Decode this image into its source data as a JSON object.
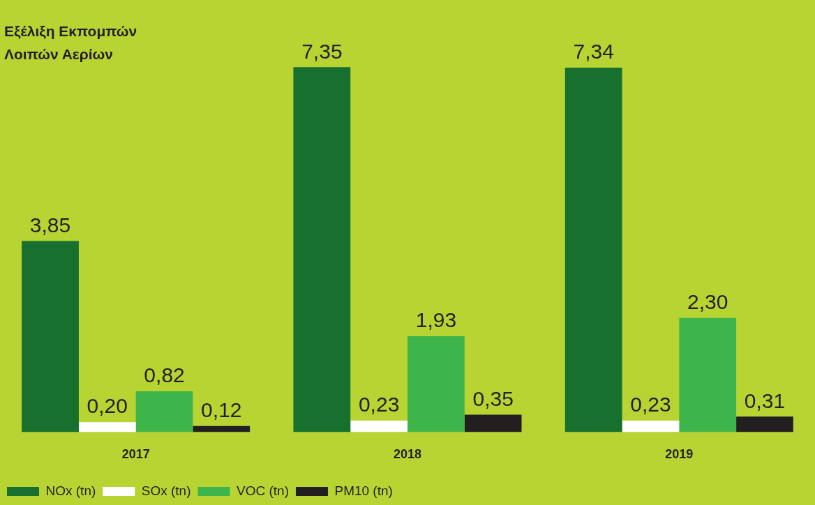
{
  "chart_data": {
    "type": "bar",
    "title": "Εξέλιξη Εκπομπών Λοιπών Αερίων",
    "categories": [
      "2017",
      "2018",
      "2019"
    ],
    "legend": "bottom left",
    "grid": false,
    "series": [
      {
        "name": "NOx (tn)",
        "color": "#17702e",
        "values": [
          3.85,
          7.35,
          7.34
        ],
        "value_labels": [
          "3,85",
          "7,35",
          "7,34"
        ]
      },
      {
        "name": "SOx (tn)",
        "color": "#ffffff",
        "values": [
          0.2,
          0.23,
          0.23
        ],
        "value_labels": [
          "0,20",
          "0,23",
          "0,23"
        ]
      },
      {
        "name": "VOC (tn)",
        "color": "#3db54a",
        "values": [
          0.82,
          1.93,
          2.3
        ],
        "value_labels": [
          "0,82",
          "1,93",
          "2,30"
        ]
      },
      {
        "name": "PM10 (tn)",
        "color": "#231f20",
        "values": [
          0.12,
          0.35,
          0.31
        ],
        "value_labels": [
          "0,12",
          "0,35",
          "0,31"
        ]
      }
    ]
  }
}
